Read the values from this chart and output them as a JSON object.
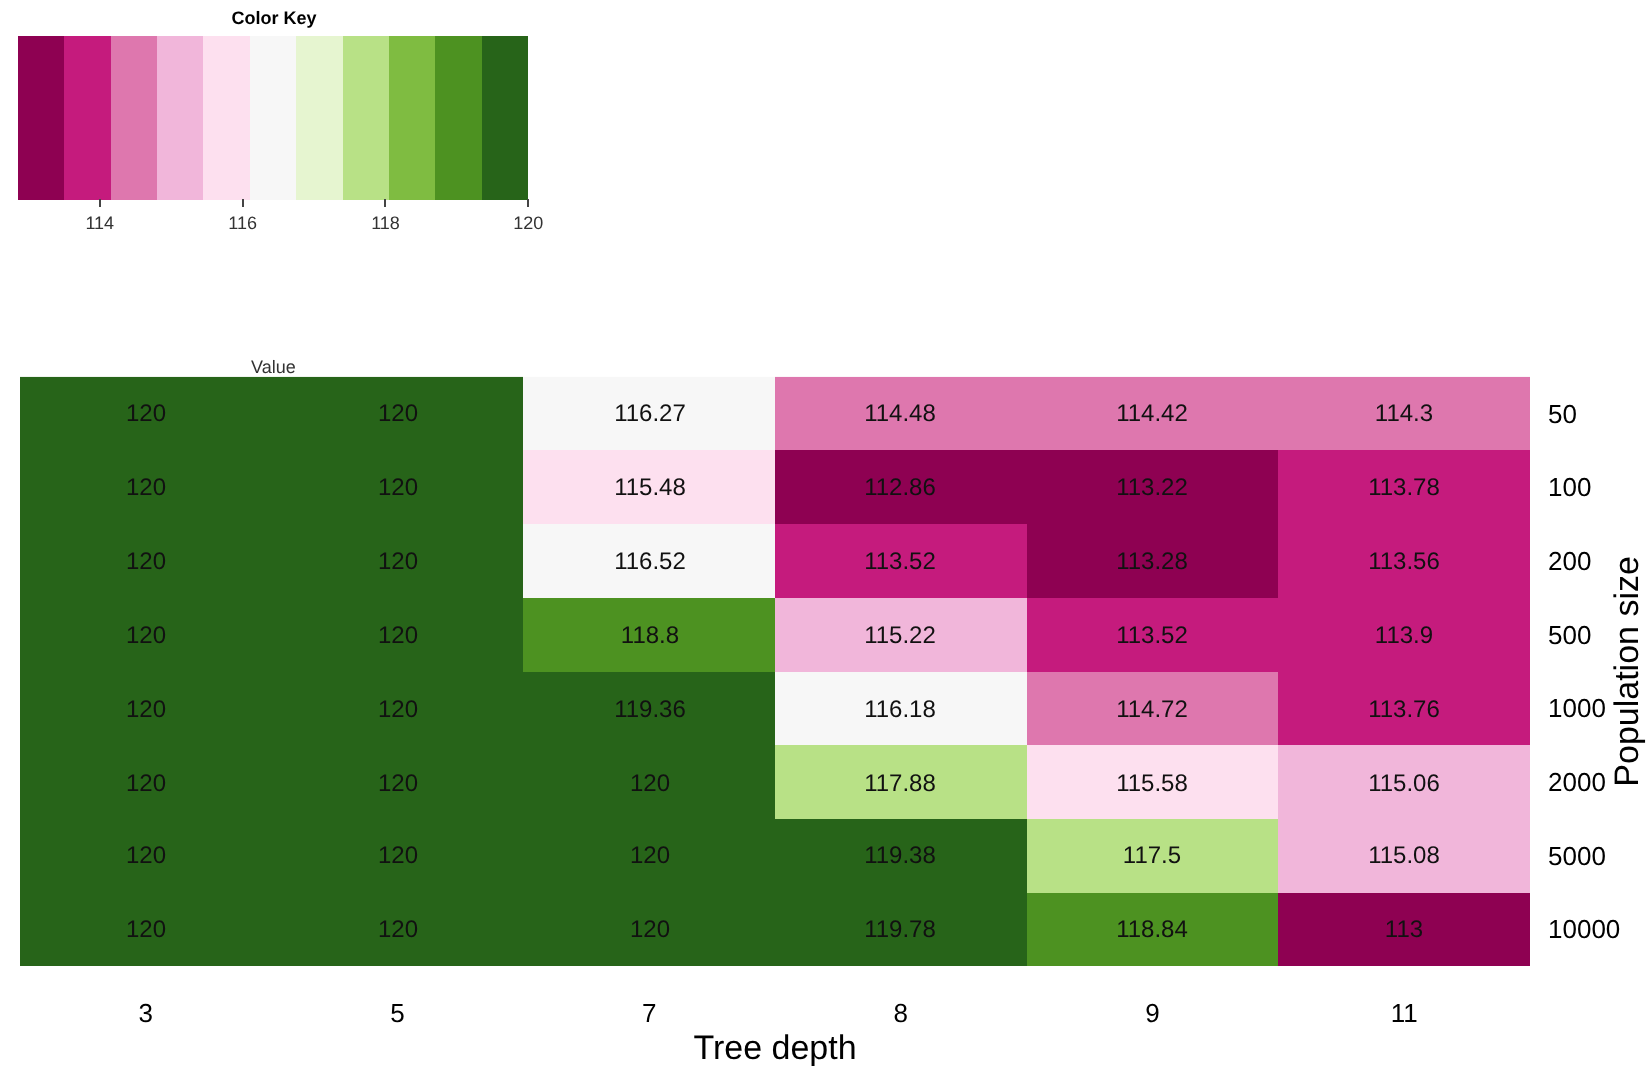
{
  "chart_data": {
    "type": "heatmap",
    "title": "Color Key",
    "xlabel": "Tree depth",
    "ylabel": "Population size",
    "clabel": "Value",
    "categories": [
      "3",
      "5",
      "7",
      "8",
      "9",
      "11"
    ],
    "y_categories": [
      "50",
      "100",
      "200",
      "500",
      "1000",
      "2000",
      "5000",
      "10000"
    ],
    "cells": [
      [
        120,
        120,
        116.27,
        114.48,
        114.42,
        114.3
      ],
      [
        120,
        120,
        115.48,
        112.86,
        113.22,
        113.78
      ],
      [
        120,
        120,
        116.52,
        113.52,
        113.28,
        113.56
      ],
      [
        120,
        120,
        118.8,
        115.22,
        113.52,
        113.9
      ],
      [
        120,
        120,
        119.36,
        116.18,
        114.72,
        113.76
      ],
      [
        120,
        120,
        120,
        117.88,
        115.58,
        115.06
      ],
      [
        120,
        120,
        120,
        119.38,
        117.5,
        115.08
      ],
      [
        120,
        120,
        120,
        119.78,
        118.84,
        113
      ]
    ],
    "clim": [
      112.86,
      120
    ],
    "cticks": [
      114,
      116,
      118,
      120
    ],
    "data_labels": true
  }
}
